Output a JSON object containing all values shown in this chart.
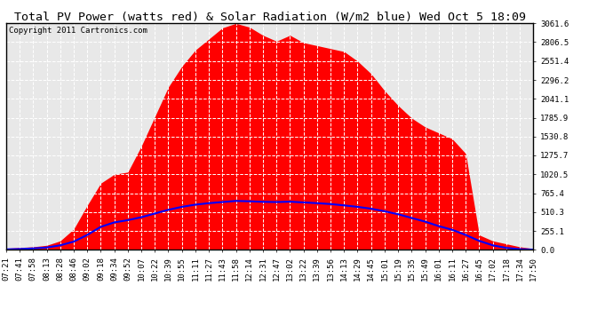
{
  "title": "Total PV Power (watts red) & Solar Radiation (W/m2 blue) Wed Oct 5 18:09",
  "copyright_text": "Copyright 2011 Cartronics.com",
  "yticks": [
    0.0,
    255.1,
    510.3,
    765.4,
    1020.5,
    1275.7,
    1530.8,
    1785.9,
    2041.1,
    2296.2,
    2551.4,
    2806.5,
    3061.6
  ],
  "ymax": 3061.6,
  "ymin": 0.0,
  "x_labels": [
    "07:21",
    "07:41",
    "07:58",
    "08:13",
    "08:28",
    "08:46",
    "09:02",
    "09:18",
    "09:34",
    "09:52",
    "10:07",
    "10:22",
    "10:39",
    "10:55",
    "11:11",
    "11:27",
    "11:43",
    "11:58",
    "12:14",
    "12:31",
    "12:47",
    "13:02",
    "13:22",
    "13:39",
    "13:56",
    "14:13",
    "14:29",
    "14:45",
    "15:01",
    "15:19",
    "15:35",
    "15:49",
    "16:01",
    "16:11",
    "16:27",
    "16:45",
    "17:02",
    "17:18",
    "17:34",
    "17:50"
  ],
  "pv_power": [
    20,
    30,
    40,
    60,
    120,
    280,
    600,
    900,
    1020,
    1050,
    1400,
    1800,
    2200,
    2480,
    2700,
    2850,
    3000,
    3061,
    3010,
    2900,
    2820,
    2900,
    2800,
    2760,
    2720,
    2680,
    2550,
    2380,
    2150,
    1950,
    1780,
    1660,
    1580,
    1500,
    1300,
    200,
    120,
    80,
    40,
    15
  ],
  "solar_rad": [
    5,
    10,
    18,
    30,
    60,
    110,
    200,
    310,
    370,
    400,
    440,
    490,
    540,
    580,
    610,
    630,
    645,
    660,
    655,
    648,
    645,
    650,
    640,
    630,
    618,
    600,
    580,
    555,
    520,
    480,
    430,
    380,
    320,
    270,
    200,
    120,
    60,
    25,
    8,
    2
  ],
  "fill_color": "#ff0000",
  "line_color": "#0000ff",
  "bg_color": "#ffffff",
  "title_fontsize": 9.5,
  "copyright_fontsize": 6.5,
  "tick_fontsize": 6.5
}
